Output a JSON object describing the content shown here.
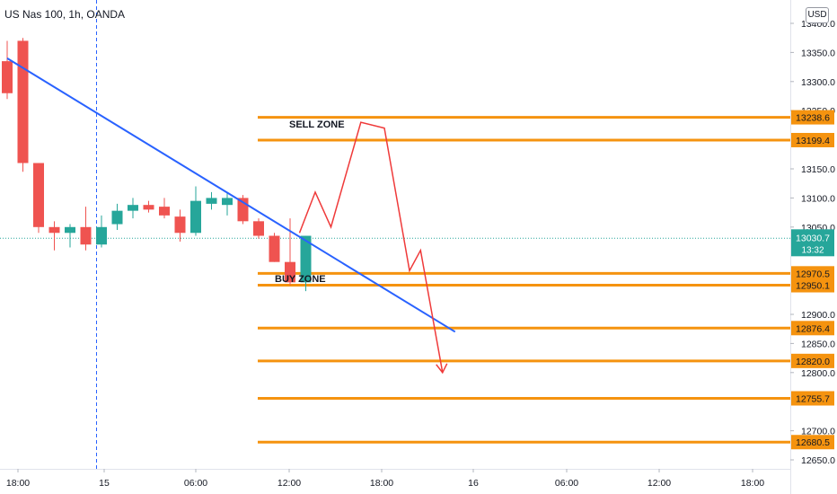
{
  "symbol_title": "US Nas 100, 1h, OANDA",
  "currency": "USD",
  "colors": {
    "up": "#26a69a",
    "down": "#ef5350",
    "level_line": "#f5930f",
    "trend_line": "#2962ff",
    "projection": "#ef3a3a",
    "price_badge": "#26a69a",
    "crosshair": "#2962ff"
  },
  "annotations": {
    "sell_zone": "SELL ZONE",
    "buy_zone": "BUY ZONE"
  },
  "chart_data": {
    "type": "candlestick",
    "title": "US Nas 100, 1h, OANDA",
    "ylim": [
      12630,
      13460
    ],
    "y_ticks": [
      "13400.0",
      "13350.0",
      "13300.0",
      "13250.0",
      "13150.0",
      "13100.0",
      "13050.0",
      "12900.0",
      "12850.0",
      "12800.0",
      "12700.0",
      "12650.0"
    ],
    "x_ticks": [
      "18:00",
      "15",
      "06:00",
      "12:00",
      "18:00",
      "16",
      "06:00",
      "12:00",
      "18:00"
    ],
    "candles": [
      {
        "o": 13335,
        "h": 13370,
        "l": 13270,
        "c": 13280
      },
      {
        "o": 13370,
        "h": 13375,
        "l": 13145,
        "c": 13160
      },
      {
        "o": 13160,
        "h": 13160,
        "l": 13040,
        "c": 13050
      },
      {
        "o": 13050,
        "h": 13060,
        "l": 13010,
        "c": 13040
      },
      {
        "o": 13040,
        "h": 13055,
        "l": 13015,
        "c": 13050
      },
      {
        "o": 13050,
        "h": 13085,
        "l": 13010,
        "c": 13020
      },
      {
        "o": 13020,
        "h": 13070,
        "l": 13015,
        "c": 13050
      },
      {
        "o": 13055,
        "h": 13090,
        "l": 13045,
        "c": 13078
      },
      {
        "o": 13078,
        "h": 13100,
        "l": 13065,
        "c": 13088
      },
      {
        "o": 13088,
        "h": 13095,
        "l": 13075,
        "c": 13080
      },
      {
        "o": 13085,
        "h": 13100,
        "l": 13065,
        "c": 13070
      },
      {
        "o": 13068,
        "h": 13080,
        "l": 13025,
        "c": 13040
      },
      {
        "o": 13040,
        "h": 13120,
        "l": 13035,
        "c": 13095
      },
      {
        "o": 13090,
        "h": 13110,
        "l": 13080,
        "c": 13100
      },
      {
        "o": 13088,
        "h": 13110,
        "l": 13070,
        "c": 13100
      },
      {
        "o": 13100,
        "h": 13105,
        "l": 13055,
        "c": 13060
      },
      {
        "o": 13060,
        "h": 13065,
        "l": 13030,
        "c": 13035
      },
      {
        "o": 13035,
        "h": 13040,
        "l": 12990,
        "c": 12990
      },
      {
        "o": 12990,
        "h": 13065,
        "l": 12950,
        "c": 12955
      },
      {
        "o": 12955,
        "h": 13035,
        "l": 12940,
        "c": 13035
      }
    ],
    "levels": [
      {
        "value": 13238.6,
        "label": "13238.6"
      },
      {
        "value": 13199.4,
        "label": "13199.4"
      },
      {
        "value": 12970.5,
        "label": "12970.5"
      },
      {
        "value": 12950.1,
        "label": "12950.1"
      },
      {
        "value": 12876.4,
        "label": "12876.4"
      },
      {
        "value": 12820.0,
        "label": "12820.0"
      },
      {
        "value": 12755.7,
        "label": "12755.7"
      },
      {
        "value": 12680.5,
        "label": "12680.5"
      }
    ],
    "current_price": {
      "value": 13030.7,
      "label": "13030.7",
      "countdown": "13:32"
    },
    "trendline": [
      {
        "bar": 0,
        "price": 13340
      },
      {
        "bar": 28.5,
        "price": 12870
      }
    ],
    "projection": [
      {
        "bar": 18.6,
        "price": 13040
      },
      {
        "bar": 19.6,
        "price": 13110
      },
      {
        "bar": 20.6,
        "price": 13050
      },
      {
        "bar": 22.5,
        "price": 13230
      },
      {
        "bar": 24.0,
        "price": 13220
      },
      {
        "bar": 25.6,
        "price": 12975
      },
      {
        "bar": 26.3,
        "price": 13010
      },
      {
        "bar": 27.7,
        "price": 12800
      }
    ]
  }
}
